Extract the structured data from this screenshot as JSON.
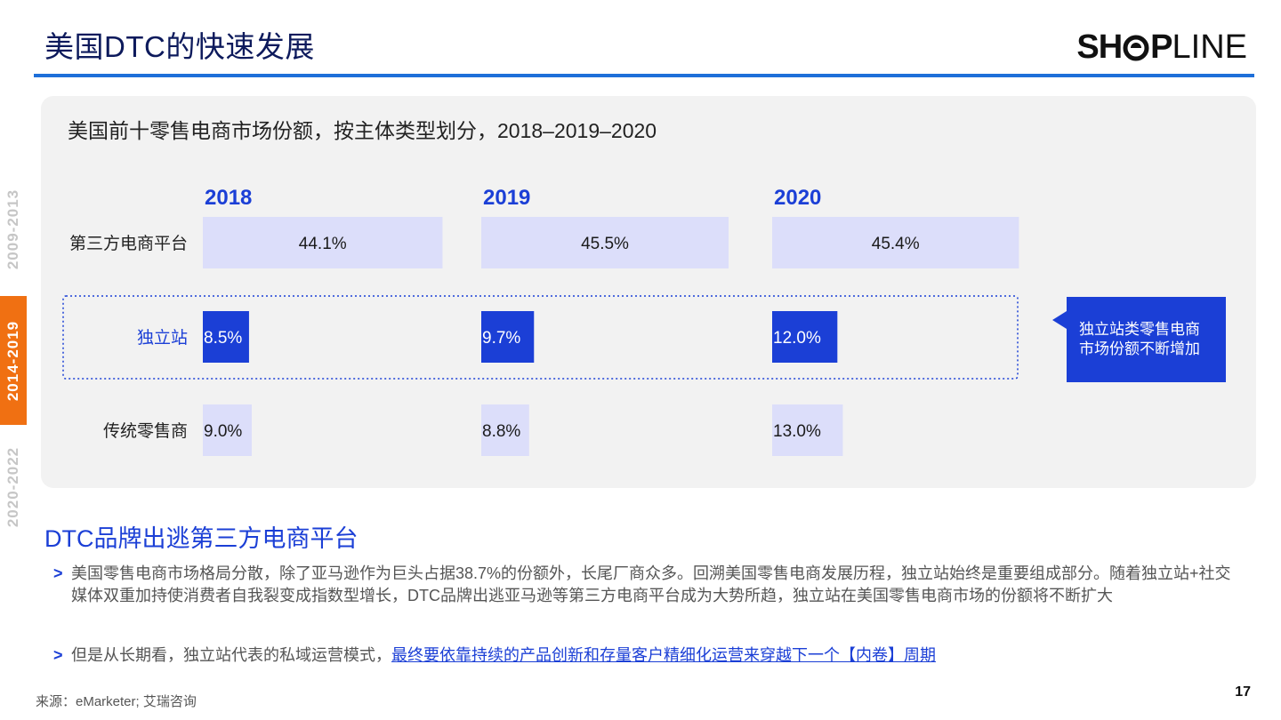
{
  "header": {
    "title": "美国DTC的快速发展",
    "logo_prefix": "SH",
    "logo_mid": "P",
    "logo_suffix": "LINE"
  },
  "timeline": [
    {
      "label": "2009-2013",
      "active": false
    },
    {
      "label": "2014-2019",
      "active": true
    },
    {
      "label": "2020-2022",
      "active": false
    }
  ],
  "chart_data": {
    "type": "bar",
    "title": "美国前十零售电商市场份额，按主体类型划分，2018–2019–2020",
    "years": [
      "2018",
      "2019",
      "2020"
    ],
    "unit": "%",
    "xlim": [
      0,
      45.5
    ],
    "series": [
      {
        "name": "第三方电商平台",
        "values": [
          44.1,
          45.5,
          45.4
        ],
        "labels": [
          "44.1%",
          "45.5%",
          "45.4%"
        ],
        "color": "#dcdefa",
        "text_color": "#1a1a1a",
        "label_align": "center",
        "highlight": false
      },
      {
        "name": "独立站",
        "values": [
          8.5,
          9.7,
          12.0
        ],
        "labels": [
          "8.5%",
          "9.7%",
          "12.0%"
        ],
        "color": "#1b3fd6",
        "text_color": "#ffffff",
        "label_align": "left",
        "highlight": true
      },
      {
        "name": "传统零售商",
        "values": [
          9.0,
          8.8,
          13.0
        ],
        "labels": [
          "9.0%",
          "8.8%",
          "13.0%"
        ],
        "color": "#dcdefa",
        "text_color": "#1a1a1a",
        "label_align": "left",
        "highlight": false
      }
    ],
    "annotation": "独立站类零售电商市场份额不断增加"
  },
  "section": {
    "title": "DTC品牌出逃第三方电商平台",
    "bullet_marker": ">",
    "bullet1": "美国零售电商市场格局分散，除了亚马逊作为巨头占据38.7%的份额外，长尾厂商众多。回溯美国零售电商发展历程，独立站始终是重要组成部分。随着独立站+社交媒体双重加持使消费者自我裂变成指数型增长，DTC品牌出逃亚马逊等第三方电商平台成为大势所趋，独立站在美国零售电商市场的份额将不断扩大",
    "bullet2_plain": "但是从长期看，独立站代表的私域运营模式，",
    "bullet2_link": "最终要依靠持续的产品创新和存量客户精细化运营来穿越下一个【内卷】周期"
  },
  "footer": {
    "source": "来源：eMarketer; 艾瑞咨询",
    "page": "17"
  }
}
